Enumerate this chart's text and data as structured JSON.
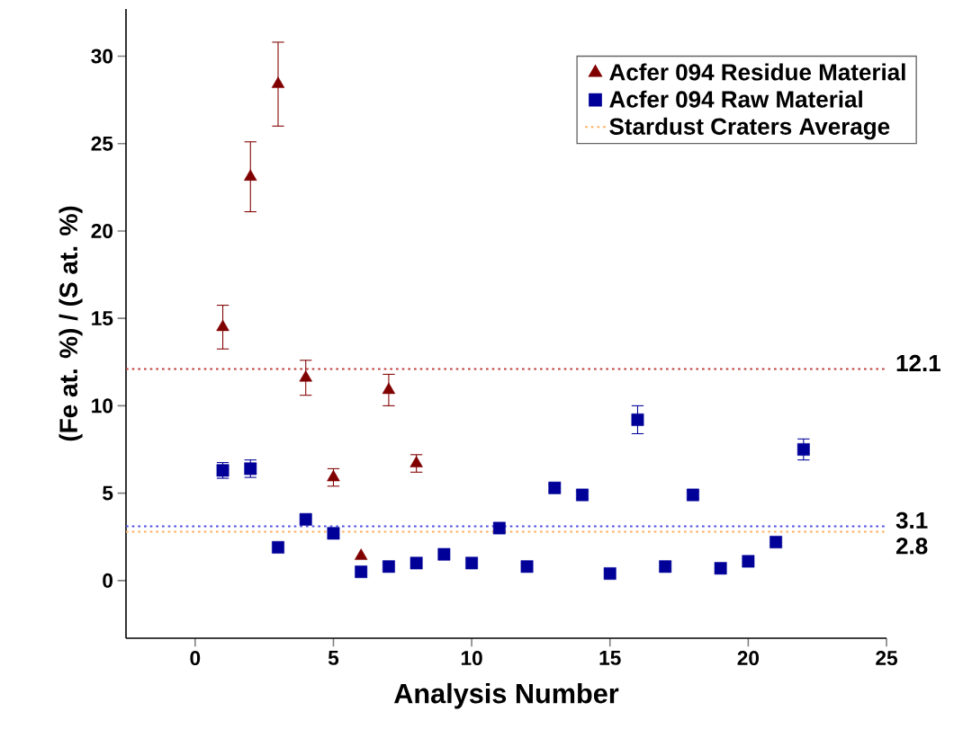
{
  "chart_data": {
    "type": "scatter",
    "xlabel": "Analysis Number",
    "ylabel": "(Fe at. %) / (S at. %)",
    "xlim": [
      -2.5,
      25
    ],
    "ylim": [
      -3.3,
      32.7
    ],
    "xticks": [
      0,
      5,
      10,
      15,
      20,
      25
    ],
    "yticks": [
      0,
      5,
      10,
      15,
      20,
      25,
      30
    ],
    "legend": "top right",
    "grid": false,
    "series": [
      {
        "name": "Acfer 094 Residue Material",
        "color": "#800000",
        "marker": "triangle",
        "x": [
          1,
          2,
          3,
          4,
          5,
          6,
          7,
          8
        ],
        "values": [
          14.5,
          23.1,
          28.4,
          11.6,
          5.9,
          1.4,
          10.9,
          6.7
        ],
        "errors": [
          1.25,
          2.0,
          2.4,
          1.0,
          0.5,
          null,
          0.9,
          0.5
        ]
      },
      {
        "name": "Acfer 094 Raw Material",
        "color": "#000099",
        "marker": "square",
        "x": [
          1,
          2,
          3,
          4,
          5,
          6,
          7,
          8,
          9,
          10,
          11,
          12,
          13,
          14,
          15,
          16,
          17,
          18,
          19,
          20,
          21,
          22
        ],
        "values": [
          6.3,
          6.4,
          1.9,
          3.5,
          2.7,
          0.5,
          0.8,
          1.0,
          1.5,
          1.0,
          3.0,
          0.8,
          5.3,
          4.9,
          0.4,
          9.2,
          0.8,
          4.9,
          0.7,
          1.1,
          2.2,
          7.5
        ],
        "errors": [
          0.45,
          0.5,
          null,
          null,
          null,
          null,
          null,
          null,
          null,
          null,
          null,
          null,
          0.2,
          0.2,
          null,
          0.8,
          null,
          0.2,
          null,
          null,
          null,
          0.6
        ]
      },
      {
        "name": "Stardust Craters Average",
        "type": "line",
        "color": "#ffb060",
        "line_style": "dotted",
        "marker": "none",
        "x": [
          -2.5,
          25
        ],
        "values": [
          2.8,
          2.8
        ]
      }
    ],
    "ref_lines": [
      {
        "axis": "y",
        "value": 12.1,
        "label": "12.1",
        "color": "#c04040",
        "line_style": "dotted"
      },
      {
        "axis": "y",
        "value": 3.1,
        "label": "3.1",
        "color": "#5050e0",
        "line_style": "dotted"
      }
    ],
    "annotations": [
      {
        "text": "2.8",
        "x": 25,
        "y": 2.8
      }
    ]
  }
}
